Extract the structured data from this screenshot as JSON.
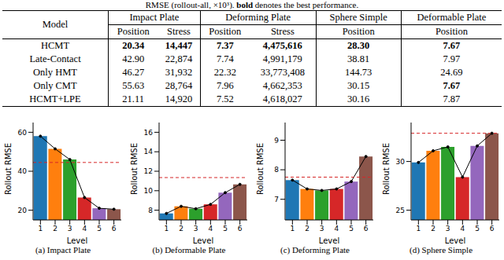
{
  "table": {
    "caption": "RMSE (rollout-all, ×10³).",
    "caption_bold": "bold",
    "caption_end": "denotes the best performance.",
    "model_header": "Model",
    "groups": [
      {
        "label": "Impact Plate",
        "columns": [
          "Position",
          "Stress"
        ]
      },
      {
        "label": "Deforming Plate",
        "columns": [
          "Position",
          "Stress"
        ]
      },
      {
        "label": "Sphere Simple",
        "columns": [
          "Position"
        ]
      },
      {
        "label": "Deformable Plate",
        "columns": [
          "Position"
        ]
      }
    ],
    "rows": [
      {
        "model": "HCMT",
        "cells": [
          "20.34",
          "14,447",
          "7.37",
          "4,475,616",
          "28.30",
          "7.67"
        ],
        "bold": [
          0,
          1,
          2,
          3,
          4,
          5
        ]
      },
      {
        "model": "Late-Contact",
        "cells": [
          "42.90",
          "22,874",
          "7.74",
          "4,991,179",
          "38.81",
          "7.97"
        ],
        "bold": []
      },
      {
        "model": "Only HMT",
        "cells": [
          "46.27",
          "31,932",
          "22.32",
          "33,773,408",
          "144.73",
          "24.69"
        ],
        "bold": []
      },
      {
        "model": "Only CMT",
        "cells": [
          "55.63",
          "28,764",
          "7.96",
          "4,662,353",
          "30.15",
          "7.67"
        ],
        "bold": [
          5
        ]
      },
      {
        "model": "HCMT+LPE",
        "cells": [
          "21.11",
          "14,920",
          "7.52",
          "4,618,027",
          "30.16",
          "7.87"
        ],
        "bold": []
      }
    ]
  },
  "chart_data": [
    {
      "type": "bar",
      "title": "(a) Impact Plate",
      "x_label": "Level",
      "y_label": "Rollout RMSE",
      "categories": [
        "1",
        "2",
        "3",
        "4",
        "5",
        "6"
      ],
      "values": [
        58,
        51.5,
        46,
        26.5,
        21,
        20.5
      ],
      "colors": [
        "#1f77b4",
        "#ff7f0e",
        "#2ca02c",
        "#d62728",
        "#9467bd",
        "#8c564b"
      ],
      "ylim": [
        15,
        65
      ],
      "yticks": [
        20,
        40,
        60
      ],
      "baseline": {
        "value": 44.5,
        "color": "#d62728",
        "line_style": "dashed"
      }
    },
    {
      "type": "bar",
      "title": "(b) Deformable Plate",
      "x_label": "Level",
      "y_label": "Rollout RMSE",
      "categories": [
        "1",
        "2",
        "3",
        "4",
        "5",
        "6"
      ],
      "values": [
        7.67,
        8.4,
        8.15,
        8.6,
        9.8,
        10.65
      ],
      "colors": [
        "#1f77b4",
        "#ff7f0e",
        "#2ca02c",
        "#d62728",
        "#9467bd",
        "#8c564b"
      ],
      "ylim": [
        7,
        17
      ],
      "yticks": [
        8,
        10,
        12,
        14,
        16
      ],
      "baseline": {
        "value": 11.35,
        "color": "#d62728",
        "line_style": "dashed"
      }
    },
    {
      "type": "bar",
      "title": "(c) Deforming Plate",
      "x_label": "Level",
      "y_label": "Rollout RMSE",
      "categories": [
        "1",
        "2",
        "3",
        "4",
        "5",
        "6"
      ],
      "values": [
        7.65,
        7.35,
        7.3,
        7.35,
        7.6,
        8.45
      ],
      "colors": [
        "#1f77b4",
        "#ff7f0e",
        "#2ca02c",
        "#d62728",
        "#9467bd",
        "#8c564b"
      ],
      "ylim": [
        6.3,
        9.6
      ],
      "yticks": [
        7,
        8,
        9
      ],
      "baseline": {
        "value": 7.75,
        "color": "#d62728",
        "line_style": "dashed"
      }
    },
    {
      "type": "bar",
      "title": "(d) Sphere Simple",
      "x_label": "Level",
      "y_label": "Rollout RMSE",
      "categories": [
        "1",
        "2",
        "3",
        "4",
        "5",
        "6"
      ],
      "values": [
        29.9,
        31.1,
        31.5,
        28.4,
        31.6,
        32.9
      ],
      "colors": [
        "#1f77b4",
        "#ff7f0e",
        "#2ca02c",
        "#d62728",
        "#9467bd",
        "#8c564b"
      ],
      "ylim": [
        24,
        34
      ],
      "yticks": [
        25,
        30
      ],
      "baseline": {
        "value": 32.9,
        "color": "#d62728",
        "line_style": "dashed"
      }
    }
  ]
}
